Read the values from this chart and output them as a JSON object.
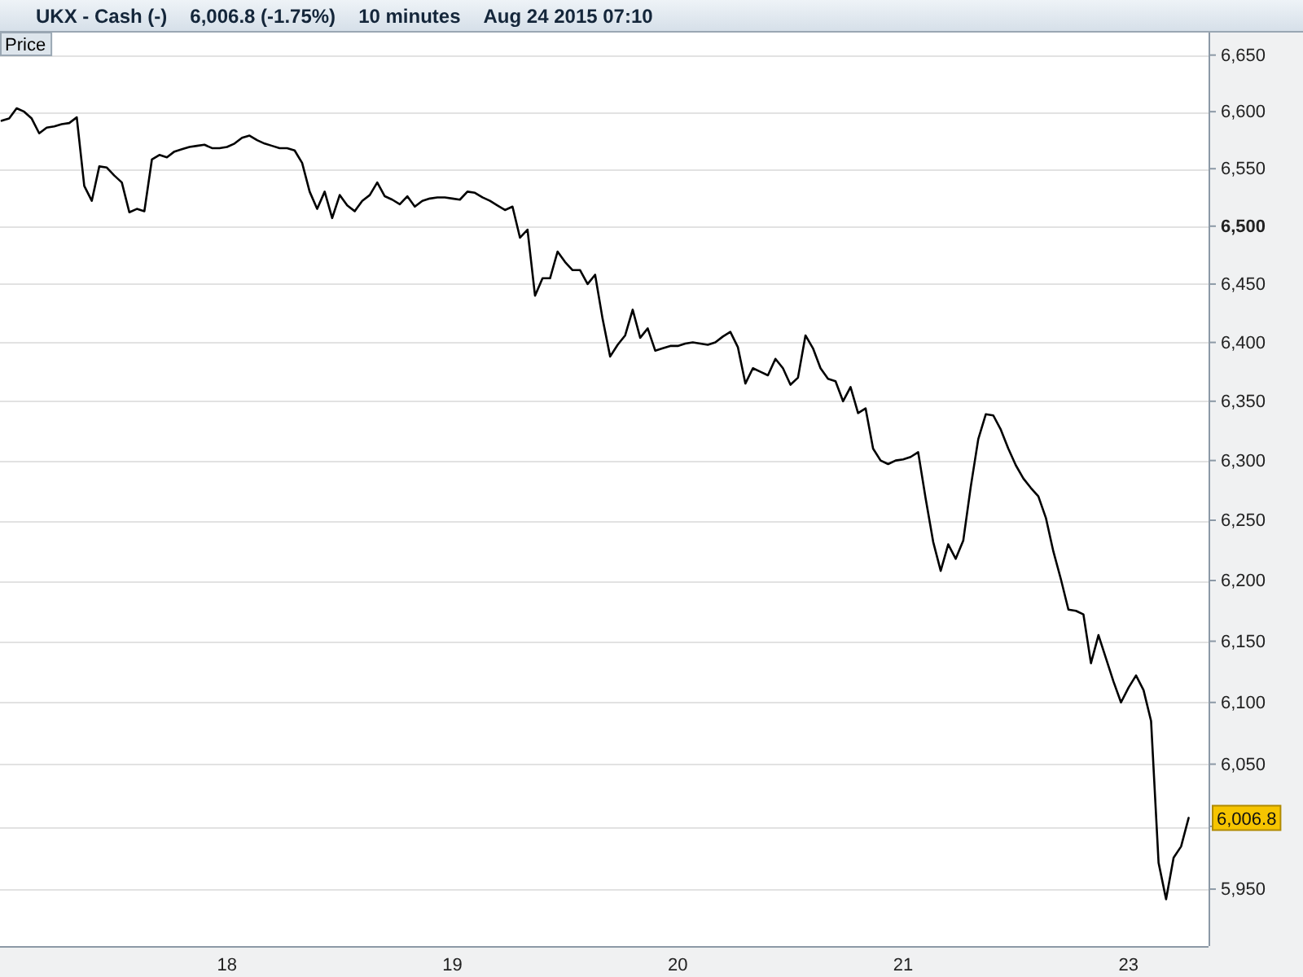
{
  "chart_data": {
    "type": "line",
    "title": "UKX - Cash (-)",
    "subtitle": "6,006.8 (-1.75%)",
    "annotations": [
      "10 minutes",
      "Aug 24 2015 07:10",
      {
        "text": "6,006.8",
        "y": 6006.8
      }
    ],
    "categories": [
      null,
      null,
      null,
      null,
      null,
      null,
      null,
      null,
      null,
      null,
      null,
      null,
      null,
      null,
      null,
      null,
      null,
      null,
      null,
      null,
      null,
      null,
      null,
      null,
      null,
      null,
      null,
      null,
      null,
      null,
      "18",
      null,
      null,
      null,
      null,
      null,
      null,
      null,
      null,
      null,
      null,
      null,
      null,
      null,
      null,
      null,
      null,
      null,
      null,
      null,
      null,
      null,
      null,
      null,
      null,
      null,
      null,
      null,
      null,
      null,
      "19",
      null,
      null,
      null,
      null,
      null,
      null,
      null,
      null,
      null,
      null,
      null,
      null,
      null,
      null,
      null,
      null,
      null,
      null,
      null,
      null,
      null,
      null,
      null,
      null,
      null,
      null,
      null,
      null,
      null,
      "20",
      null,
      null,
      null,
      null,
      null,
      null,
      null,
      null,
      null,
      null,
      null,
      null,
      null,
      null,
      null,
      null,
      null,
      null,
      null,
      null,
      null,
      null,
      null,
      null,
      null,
      null,
      null,
      null,
      null,
      "21",
      null,
      null,
      null,
      null,
      null,
      null,
      null,
      null,
      null,
      null,
      null,
      null,
      null,
      null,
      null,
      null,
      null,
      null,
      null,
      null,
      null,
      null,
      null,
      null,
      null,
      null,
      null,
      null,
      null,
      "23",
      null,
      null,
      null,
      null,
      null,
      null,
      null,
      null,
      null,
      null
    ],
    "series": [
      {
        "name": "Price",
        "color": "#000000",
        "values": [
          6592,
          6594,
          6603,
          6600,
          6594,
          6581,
          6586,
          6587,
          6589,
          6590,
          6595,
          6535,
          6522,
          6552,
          6551,
          6544,
          6538,
          6512,
          6515,
          6513,
          6558,
          6562,
          6560,
          6565,
          6567,
          6569,
          6570,
          6571,
          6568,
          6568,
          6569,
          6572,
          6577,
          6579,
          6575,
          6572,
          6570,
          6568,
          6568,
          6566,
          6555,
          6530,
          6515,
          6530,
          6507,
          6527,
          6518,
          6513,
          6522,
          6527,
          6538,
          6526,
          6523,
          6519,
          6526,
          6517,
          6522,
          6524,
          6525,
          6525,
          6524,
          6523,
          6530,
          6529,
          6525,
          6522,
          6518,
          6514,
          6517,
          6490,
          6497,
          6440,
          6455,
          6455,
          6478,
          6469,
          6462,
          6462,
          6450,
          6458,
          6420,
          6388,
          6398,
          6406,
          6428,
          6404,
          6412,
          6393,
          6395,
          6397,
          6397,
          6399,
          6400,
          6399,
          6398,
          6400,
          6405,
          6409,
          6396,
          6365,
          6378,
          6375,
          6372,
          6386,
          6378,
          6364,
          6370,
          6406,
          6395,
          6378,
          6369,
          6367,
          6350,
          6362,
          6340,
          6344,
          6310,
          6300,
          6297,
          6300,
          6301,
          6303,
          6307,
          6268,
          6232,
          6208,
          6230,
          6218,
          6233,
          6278,
          6318,
          6339,
          6338,
          6326,
          6310,
          6296,
          6285,
          6277,
          6270,
          6252,
          6224,
          6201,
          6176,
          6175,
          6172,
          6132,
          6155,
          6136,
          6117,
          6100,
          6112,
          6122,
          6110,
          6085,
          5971,
          5942,
          5975,
          5984,
          6006.8,
          null,
          null
        ]
      }
    ],
    "ylim": [
      5905,
      6670
    ],
    "yticks": [
      {
        "value": 5950,
        "label": "5,950"
      },
      {
        "value": 6000,
        "label": null
      },
      {
        "value": 6050,
        "label": "6,050"
      },
      {
        "value": 6100,
        "label": "6,100"
      },
      {
        "value": 6150,
        "label": "6,150"
      },
      {
        "value": 6200,
        "label": "6,200"
      },
      {
        "value": 6250,
        "label": "6,250"
      },
      {
        "value": 6300,
        "label": "6,300"
      },
      {
        "value": 6350,
        "label": "6,350"
      },
      {
        "value": 6400,
        "label": "6,400"
      },
      {
        "value": 6450,
        "label": "6,450"
      },
      {
        "value": 6500,
        "label": "6,500"
      },
      {
        "value": 6550,
        "label": "6,550"
      },
      {
        "value": 6600,
        "label": "6,600"
      },
      {
        "value": 6650,
        "label": "6,650"
      }
    ],
    "log": true,
    "grid": "y",
    "legend": "top left"
  }
}
